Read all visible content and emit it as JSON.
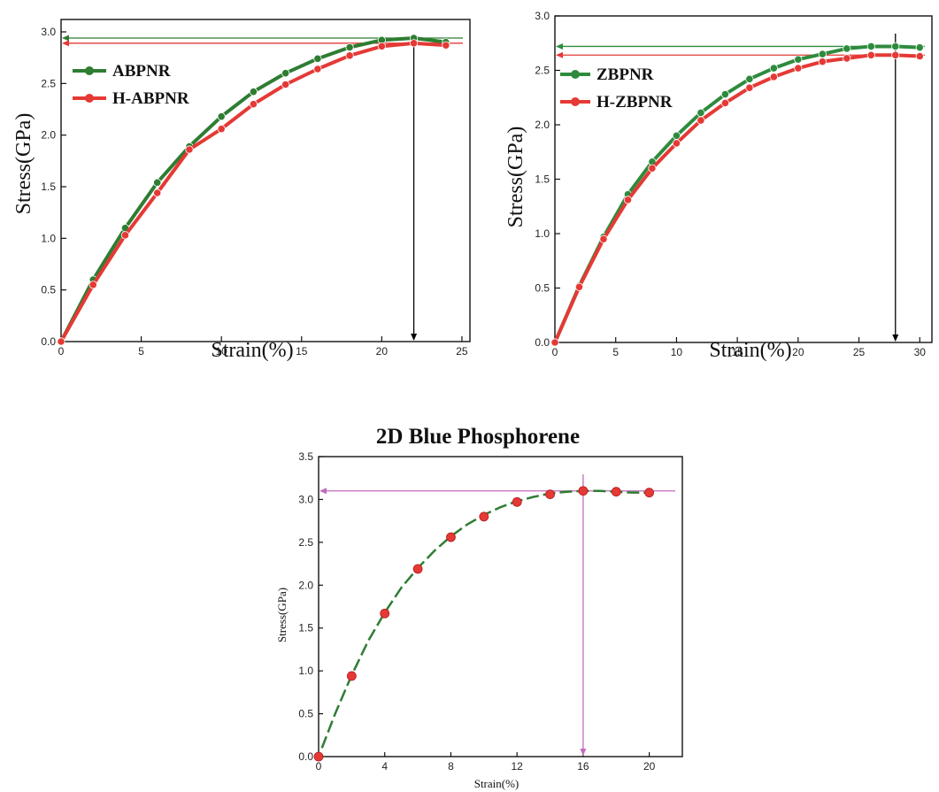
{
  "chart_data": [
    {
      "type": "line",
      "title": "",
      "xlabel": "Strain(%)",
      "ylabel": "Stress(GPa)",
      "xlim": [
        0,
        25.5
      ],
      "ylim": [
        0,
        3.12
      ],
      "xticks": [
        0,
        5,
        10,
        15,
        20,
        25
      ],
      "yticks": [
        0.0,
        0.5,
        1.0,
        1.5,
        2.0,
        2.5,
        3.0
      ],
      "ytick_decimals": 1,
      "legend_position": "top-left",
      "series": [
        {
          "name": "ABPNR",
          "color": "#2e7d32",
          "x": [
            0,
            2,
            4,
            6,
            8,
            10,
            12,
            14,
            16,
            18,
            20,
            22,
            24
          ],
          "y": [
            0,
            0.6,
            1.1,
            1.54,
            1.89,
            2.18,
            2.42,
            2.6,
            2.74,
            2.85,
            2.92,
            2.94,
            2.9
          ]
        },
        {
          "name": "H-ABPNR",
          "color": "#e53935",
          "x": [
            0,
            2,
            4,
            6,
            8,
            10,
            12,
            14,
            16,
            18,
            20,
            22,
            24
          ],
          "y": [
            0,
            0.55,
            1.03,
            1.44,
            1.86,
            2.06,
            2.3,
            2.49,
            2.64,
            2.77,
            2.86,
            2.89,
            2.87
          ]
        }
      ],
      "guides": [
        {
          "kind": "h",
          "y": 2.94,
          "color": "#2e7d32"
        },
        {
          "kind": "h",
          "y": 2.89,
          "color": "#e53935"
        },
        {
          "kind": "v",
          "x": 22,
          "color": "#000000"
        }
      ]
    },
    {
      "type": "line",
      "title": "",
      "xlabel": "Strain(%)",
      "ylabel": "Stress(GPa)",
      "xlim": [
        0,
        31
      ],
      "ylim": [
        0,
        3.0
      ],
      "xticks": [
        0,
        5,
        10,
        15,
        20,
        25,
        30
      ],
      "yticks": [
        0.0,
        0.5,
        1.0,
        1.5,
        2.0,
        2.5,
        3.0
      ],
      "ytick_decimals": 1,
      "legend_position": "top-left",
      "series": [
        {
          "name": "ZBPNR",
          "color": "#2e8b3d",
          "x": [
            0,
            2,
            4,
            6,
            8,
            10,
            12,
            14,
            16,
            18,
            20,
            22,
            24,
            26,
            28,
            30
          ],
          "y": [
            0,
            0.52,
            0.97,
            1.36,
            1.66,
            1.9,
            2.11,
            2.28,
            2.42,
            2.52,
            2.6,
            2.65,
            2.7,
            2.72,
            2.72,
            2.71
          ]
        },
        {
          "name": "H-ZBPNR",
          "color": "#e53935",
          "x": [
            0,
            2,
            4,
            6,
            8,
            10,
            12,
            14,
            16,
            18,
            20,
            22,
            24,
            26,
            28,
            30
          ],
          "y": [
            0,
            0.51,
            0.95,
            1.31,
            1.6,
            1.83,
            2.04,
            2.2,
            2.34,
            2.44,
            2.52,
            2.58,
            2.61,
            2.64,
            2.64,
            2.63
          ]
        }
      ],
      "guides": [
        {
          "kind": "h",
          "y": 2.72,
          "color": "#2e8b3d"
        },
        {
          "kind": "h",
          "y": 2.64,
          "color": "#e53935"
        },
        {
          "kind": "v",
          "x": 28,
          "color": "#000000"
        }
      ]
    },
    {
      "type": "scatter",
      "title": "2D Blue Phosphorene",
      "xlabel": "Strain(%)",
      "ylabel": "Stress(GPa)",
      "xlim": [
        0,
        22
      ],
      "ylim": [
        0,
        3.5
      ],
      "xticks": [
        0,
        4,
        8,
        12,
        16,
        20
      ],
      "yticks": [
        0.0,
        0.5,
        1.0,
        1.5,
        2.0,
        2.5,
        3.0,
        3.5
      ],
      "ytick_decimals": 1,
      "series": [
        {
          "name": "",
          "color": "#e53935",
          "x": [
            0,
            2,
            4,
            6,
            8,
            10,
            12,
            14,
            16,
            18,
            20
          ],
          "y": [
            0,
            0.94,
            1.67,
            2.19,
            2.56,
            2.8,
            2.97,
            3.06,
            3.1,
            3.09,
            3.08
          ]
        }
      ],
      "fit": {
        "color": "#2e7d32",
        "x": [
          0.2,
          1,
          2,
          3,
          4,
          5,
          6,
          7,
          8,
          9,
          10,
          11,
          12,
          13,
          14,
          15,
          16,
          17,
          18,
          19,
          20
        ],
        "y": [
          0.1,
          0.5,
          0.95,
          1.35,
          1.68,
          1.97,
          2.2,
          2.4,
          2.57,
          2.71,
          2.82,
          2.91,
          2.98,
          3.03,
          3.07,
          3.09,
          3.1,
          3.1,
          3.09,
          3.08,
          3.08
        ]
      },
      "guides": [
        {
          "kind": "h",
          "y": 3.1,
          "color": "#c06cc0"
        },
        {
          "kind": "v",
          "x": 16,
          "color": "#c06cc0"
        }
      ]
    }
  ]
}
